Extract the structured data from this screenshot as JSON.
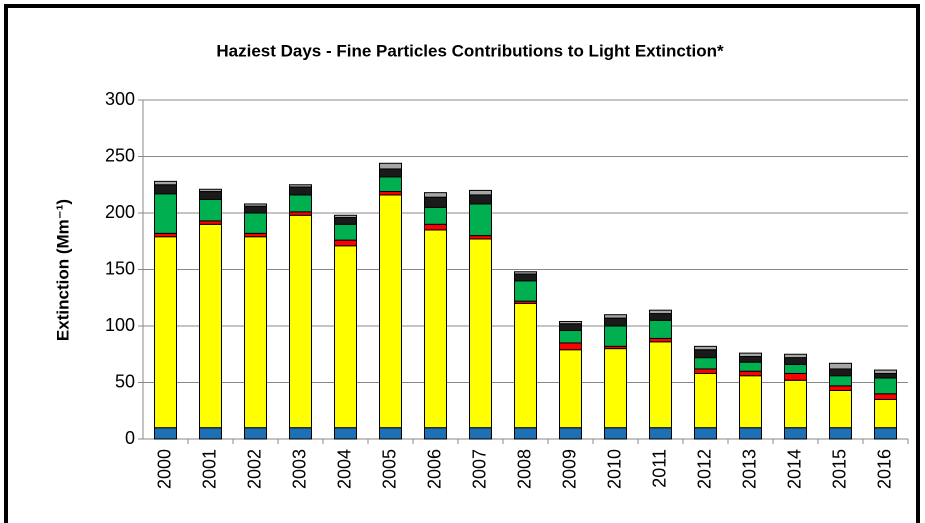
{
  "chart_data": {
    "type": "bar",
    "stacked": true,
    "title": "Haziest Days - Fine Particles Contributions to Light Extinction*",
    "y_label": "Extinction (Mm⁻¹)",
    "categories": [
      "2000",
      "2001",
      "2002",
      "2003",
      "2004",
      "2005",
      "2006",
      "2007",
      "2008",
      "2009",
      "2010",
      "2011",
      "2012",
      "2013",
      "2014",
      "2015",
      "2016"
    ],
    "series": [
      {
        "color": "#1f6fb4",
        "values": [
          10,
          10,
          10,
          10,
          10,
          10,
          10,
          10,
          10,
          10,
          10,
          10,
          10,
          10,
          10,
          10,
          10
        ]
      },
      {
        "color": "#ffff00",
        "values": [
          169,
          180,
          169,
          188,
          161,
          206,
          175,
          167,
          110,
          69,
          70,
          76,
          48,
          46,
          42,
          33,
          25
        ]
      },
      {
        "color": "#ff0000",
        "values": [
          3,
          3,
          3,
          3,
          5,
          3,
          5,
          3,
          2,
          6,
          2,
          3,
          4,
          4,
          6,
          4,
          5
        ]
      },
      {
        "color": "#00b050",
        "values": [
          35,
          19,
          18,
          15,
          14,
          13,
          15,
          28,
          18,
          11,
          18,
          16,
          10,
          8,
          8,
          9,
          14
        ]
      },
      {
        "color": "#1a1a1a",
        "values": [
          8,
          7,
          6,
          7,
          6,
          7,
          9,
          8,
          6,
          6,
          7,
          6,
          7,
          5,
          6,
          6,
          4
        ]
      },
      {
        "color": "#a6a6a6",
        "values": [
          3,
          2,
          2,
          2,
          2,
          5,
          4,
          4,
          2,
          2,
          3,
          3,
          3,
          3,
          3,
          5,
          3
        ]
      }
    ],
    "ylim": [
      0,
      300
    ],
    "yticks": [
      0,
      50,
      100,
      150,
      200,
      250,
      300
    ],
    "grid": true
  }
}
